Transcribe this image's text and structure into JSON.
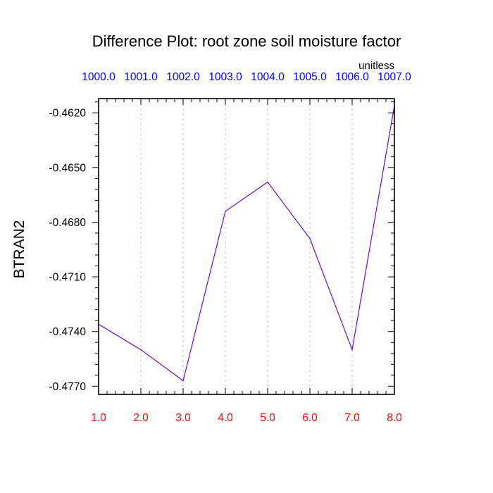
{
  "chart_data": {
    "type": "line",
    "title": "Difference Plot: root zone soil moisture factor",
    "units_label": "unitless",
    "ylabel": "BTRAN2",
    "xlabel": "",
    "x": [
      1.0,
      2.0,
      3.0,
      4.0,
      5.0,
      6.0,
      7.0,
      8.0
    ],
    "x_tick_labels_bottom": [
      "1.0",
      "2.0",
      "3.0",
      "4.0",
      "5.0",
      "6.0",
      "7.0",
      "8.0"
    ],
    "x_tick_labels_top": [
      "1000.0",
      "1001.0",
      "1002.0",
      "1003.0",
      "1004.0",
      "1005.0",
      "1006.0",
      "1007.0"
    ],
    "y_tick_labels": [
      "-0.4620",
      "-0.4650",
      "-0.4680",
      "-0.4710",
      "-0.4740",
      "-0.4770"
    ],
    "y_ticks": [
      -0.462,
      -0.465,
      -0.468,
      -0.471,
      -0.474,
      -0.477
    ],
    "xlim": [
      1.0,
      8.0
    ],
    "ylim": [
      -0.47745,
      -0.46122
    ],
    "grid": "vertical dotted",
    "series": [
      {
        "values": [
          -0.4736,
          -0.475,
          -0.4767,
          -0.4674,
          -0.4658,
          -0.4689,
          -0.475,
          -0.4616
        ],
        "color": "#3a00ff",
        "dash_color": "#ff0000"
      }
    ],
    "colors": {
      "bottom_tick_labels": "#ff0000",
      "top_tick_labels": "#0000ff",
      "axis": "#000000",
      "grid": "#cccccc"
    }
  }
}
